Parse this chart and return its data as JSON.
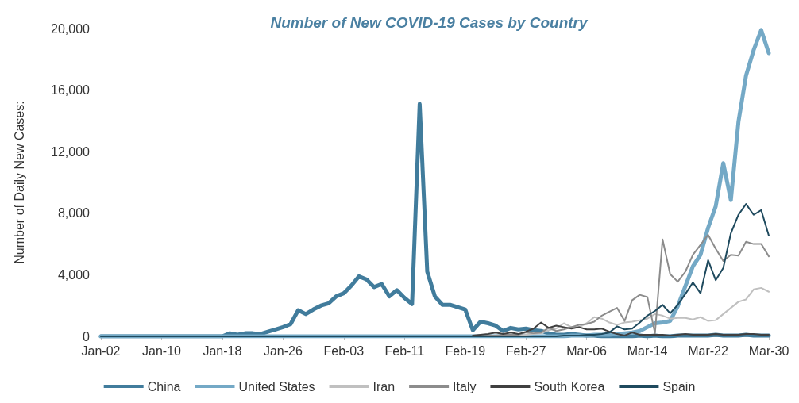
{
  "chart_data": {
    "type": "line",
    "title": "Number of New COVID-19 Cases by Country",
    "ylabel": "Number of Daily New Cases:",
    "categories": [
      "Jan-02",
      null,
      null,
      null,
      null,
      null,
      null,
      null,
      "Jan-10",
      null,
      null,
      null,
      null,
      null,
      null,
      null,
      "Jan-18",
      null,
      null,
      null,
      null,
      null,
      null,
      null,
      "Jan-26",
      null,
      null,
      null,
      null,
      null,
      null,
      null,
      "Feb-03",
      null,
      null,
      null,
      null,
      null,
      null,
      null,
      "Feb-11",
      null,
      null,
      null,
      null,
      null,
      null,
      null,
      "Feb-19",
      null,
      null,
      null,
      null,
      null,
      null,
      null,
      "Feb-27",
      null,
      null,
      null,
      null,
      null,
      null,
      null,
      "Mar-06",
      null,
      null,
      null,
      null,
      null,
      null,
      null,
      "Mar-14",
      null,
      null,
      null,
      null,
      null,
      null,
      null,
      "Mar-22",
      null,
      null,
      null,
      null,
      null,
      null,
      null,
      "Mar-30"
    ],
    "series": [
      {
        "name": "China",
        "color": "#417c9c",
        "values": [
          0,
          0,
          0,
          0,
          0,
          0,
          0,
          0,
          0,
          0,
          0,
          0,
          0,
          0,
          0,
          0,
          0,
          200,
          100,
          200,
          200,
          150,
          300,
          450,
          600,
          800,
          1700,
          1450,
          1750,
          2000,
          2150,
          2600,
          2800,
          3300,
          3900,
          3700,
          3200,
          3400,
          2600,
          3000,
          2500,
          2100,
          15100,
          4200,
          2600,
          2050,
          2050,
          1900,
          1750,
          400,
          950,
          850,
          700,
          350,
          550,
          450,
          500,
          400,
          350,
          200,
          100,
          100,
          150,
          100,
          50,
          50,
          0,
          0,
          0,
          0,
          0,
          50,
          0,
          50,
          0,
          0,
          50,
          50,
          50,
          50,
          50,
          100,
          50,
          50,
          50,
          100,
          50,
          50,
          50
        ]
      },
      {
        "name": "United States",
        "color": "#74a9c6",
        "values": [
          0,
          0,
          0,
          0,
          0,
          0,
          0,
          0,
          0,
          0,
          0,
          0,
          0,
          0,
          0,
          0,
          0,
          0,
          0,
          0,
          0,
          0,
          0,
          0,
          0,
          0,
          0,
          0,
          0,
          0,
          0,
          0,
          0,
          0,
          0,
          0,
          0,
          0,
          0,
          0,
          0,
          0,
          0,
          0,
          0,
          0,
          0,
          0,
          0,
          0,
          0,
          0,
          0,
          0,
          0,
          0,
          0,
          0,
          0,
          0,
          0,
          0,
          50,
          50,
          50,
          100,
          100,
          100,
          150,
          200,
          250,
          350,
          600,
          850,
          900,
          1000,
          1950,
          3250,
          4550,
          5300,
          7050,
          8450,
          11250,
          8850,
          13950,
          16950,
          18600,
          19900,
          18400
        ]
      },
      {
        "name": "Iran",
        "color": "#c0c0c0",
        "values": [
          null,
          null,
          null,
          null,
          null,
          null,
          null,
          null,
          null,
          null,
          null,
          null,
          null,
          null,
          null,
          null,
          null,
          null,
          null,
          null,
          null,
          null,
          null,
          null,
          null,
          null,
          null,
          null,
          null,
          null,
          null,
          null,
          null,
          null,
          null,
          null,
          null,
          null,
          null,
          null,
          null,
          null,
          null,
          null,
          null,
          null,
          null,
          null,
          null,
          null,
          null,
          null,
          null,
          null,
          null,
          50,
          100,
          150,
          200,
          400,
          500,
          850,
          600,
          600,
          850,
          1250,
          1150,
          900,
          750,
          900,
          950,
          1050,
          1150,
          1450,
          1350,
          1150,
          1200,
          1200,
          1100,
          1250,
          1000,
          1050,
          1450,
          1850,
          2250,
          2400,
          3050,
          3150,
          2900
        ]
      },
      {
        "name": "Italy",
        "color": "#8c8c8c",
        "values": [
          0,
          0,
          0,
          0,
          0,
          0,
          0,
          0,
          0,
          0,
          0,
          0,
          0,
          0,
          0,
          0,
          0,
          0,
          0,
          0,
          0,
          0,
          0,
          0,
          0,
          0,
          0,
          0,
          0,
          0,
          0,
          0,
          0,
          0,
          0,
          0,
          0,
          0,
          0,
          0,
          0,
          0,
          0,
          0,
          0,
          0,
          0,
          0,
          0,
          0,
          0,
          50,
          50,
          100,
          100,
          100,
          250,
          200,
          250,
          550,
          350,
          450,
          600,
          750,
          800,
          950,
          1350,
          1600,
          1850,
          1000,
          2350,
          2700,
          2550,
          200,
          6300,
          4050,
          3550,
          4200,
          5300,
          5950,
          6600,
          5700,
          4900,
          5300,
          5250,
          6150,
          6000,
          6000,
          5200
        ]
      },
      {
        "name": "South Korea",
        "color": "#404040",
        "values": [
          null,
          null,
          null,
          null,
          null,
          null,
          null,
          null,
          null,
          null,
          null,
          null,
          null,
          null,
          null,
          null,
          null,
          null,
          null,
          null,
          null,
          null,
          null,
          null,
          null,
          null,
          null,
          null,
          null,
          null,
          null,
          null,
          null,
          null,
          null,
          null,
          null,
          null,
          null,
          null,
          null,
          null,
          null,
          null,
          null,
          null,
          null,
          null,
          null,
          50,
          100,
          150,
          250,
          150,
          250,
          150,
          300,
          500,
          900,
          550,
          700,
          600,
          500,
          600,
          450,
          450,
          500,
          300,
          150,
          50,
          250,
          100,
          100,
          100,
          100,
          50,
          100,
          150,
          100,
          100,
          100,
          150,
          100,
          100,
          100,
          150,
          150,
          100,
          100
        ]
      },
      {
        "name": "Spain",
        "color": "#1f4a5e",
        "values": [
          0,
          0,
          0,
          0,
          0,
          0,
          0,
          0,
          0,
          0,
          0,
          0,
          0,
          0,
          0,
          0,
          0,
          0,
          0,
          0,
          0,
          0,
          0,
          0,
          0,
          0,
          0,
          0,
          0,
          0,
          0,
          0,
          0,
          0,
          0,
          0,
          0,
          0,
          0,
          0,
          0,
          0,
          0,
          0,
          0,
          0,
          0,
          0,
          0,
          0,
          0,
          0,
          0,
          0,
          0,
          0,
          0,
          0,
          0,
          0,
          0,
          50,
          50,
          50,
          100,
          100,
          150,
          250,
          650,
          450,
          500,
          900,
          1350,
          1650,
          2050,
          1500,
          2050,
          2750,
          3500,
          2800,
          4950,
          3650,
          4450,
          6700,
          7900,
          8600,
          7900,
          8200,
          6550
        ]
      }
    ],
    "ylim": [
      0,
      20000
    ],
    "yticks": [
      {
        "value": 0,
        "label": "0"
      },
      {
        "value": 4000,
        "label": "4,000"
      },
      {
        "value": 8000,
        "label": "8,000"
      },
      {
        "value": 12000,
        "label": "12,000"
      },
      {
        "value": 16000,
        "label": "16,000"
      },
      {
        "value": 20000,
        "label": "20,000"
      }
    ],
    "grid": false,
    "legend": "bottom",
    "marker": "none",
    "line_style": "solid"
  }
}
